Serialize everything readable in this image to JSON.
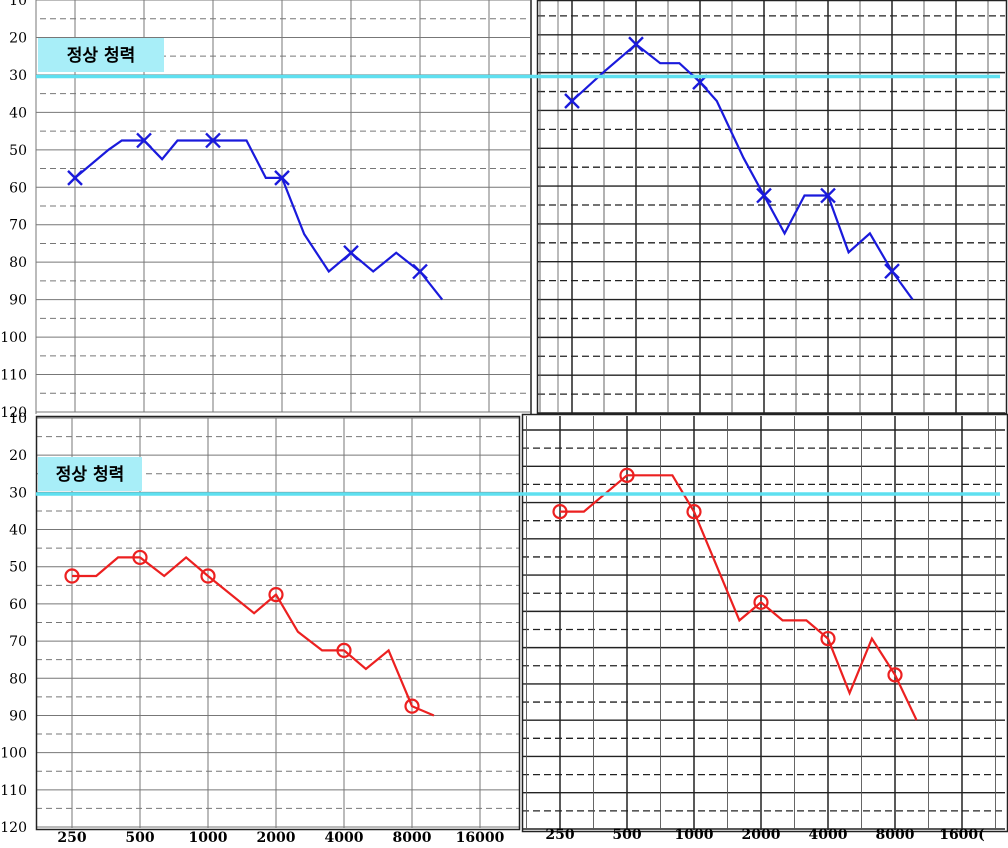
{
  "normal_hearing_label": "정상 청력",
  "normal_hearing_level": 30,
  "colors": {
    "normal_line": "#5ee0f0",
    "normal_label_bg": "#a8eef8",
    "blue_series": "#1a1adc",
    "red_series": "#ec2020"
  },
  "chart_data": [
    {
      "type": "line",
      "panel": "top-left",
      "x_ticks": [
        "250",
        "500",
        "1000",
        "2000",
        "4000",
        "8000",
        "16000"
      ],
      "y_ticks": [
        "10",
        "20",
        "30",
        "40",
        "50",
        "60",
        "70",
        "80",
        "90",
        "100",
        "110",
        "120"
      ],
      "ylim": [
        10,
        120
      ],
      "y_inverted": true,
      "grid": true,
      "series": [
        {
          "color": "blue",
          "marker": "x",
          "points": [
            [
              250,
              57.5
            ],
            [
              350,
              50
            ],
            [
              400,
              47.5
            ],
            [
              500,
              47.5
            ],
            [
              600,
              52.5
            ],
            [
              700,
              47.5
            ],
            [
              850,
              47.5
            ],
            [
              1000,
              47.5
            ],
            [
              1150,
              47.5
            ],
            [
              1400,
              47.5
            ],
            [
              1700,
              57.5
            ],
            [
              2000,
              57.5
            ],
            [
              2500,
              72.5
            ],
            [
              3200,
              82.5
            ],
            [
              4000,
              77.5
            ],
            [
              5000,
              82.5
            ],
            [
              6300,
              77.5
            ],
            [
              8000,
              82.5
            ],
            [
              10000,
              90
            ]
          ],
          "markers": [
            [
              250,
              57.5
            ],
            [
              500,
              47.5
            ],
            [
              1000,
              47.5
            ],
            [
              2000,
              57.5
            ],
            [
              4000,
              77.5
            ],
            [
              8000,
              82.5
            ]
          ]
        }
      ]
    },
    {
      "type": "line",
      "panel": "top-right",
      "x_ticks": [],
      "y_ticks": [],
      "ylim": [
        10,
        120
      ],
      "y_inverted": true,
      "grid": true,
      "series": [
        {
          "color": "blue",
          "marker": "x",
          "points": [
            [
              250,
              37.5
            ],
            [
              350,
              30
            ],
            [
              500,
              22.5
            ],
            [
              650,
              27.5
            ],
            [
              800,
              27.5
            ],
            [
              1000,
              32.5
            ],
            [
              1200,
              37.5
            ],
            [
              1600,
              52.5
            ],
            [
              2000,
              62.5
            ],
            [
              2500,
              72.5
            ],
            [
              3100,
              62.5
            ],
            [
              4000,
              62.5
            ],
            [
              5000,
              77.5
            ],
            [
              6300,
              72.5
            ],
            [
              8000,
              82.5
            ],
            [
              10000,
              90
            ]
          ],
          "markers": [
            [
              250,
              37.5
            ],
            [
              500,
              22.5
            ],
            [
              1000,
              32.5
            ],
            [
              2000,
              62.5
            ],
            [
              4000,
              62.5
            ],
            [
              8000,
              82.5
            ]
          ]
        }
      ]
    },
    {
      "type": "line",
      "panel": "bottom-left",
      "x_ticks": [
        "250",
        "500",
        "1000",
        "2000",
        "4000",
        "8000",
        "16000"
      ],
      "y_ticks": [
        "10",
        "20",
        "30",
        "40",
        "50",
        "60",
        "70",
        "80",
        "90",
        "100",
        "110",
        "120"
      ],
      "ylim": [
        10,
        120
      ],
      "y_inverted": true,
      "grid": true,
      "series": [
        {
          "color": "red",
          "marker": "o",
          "points": [
            [
              250,
              52.5
            ],
            [
              320,
              52.5
            ],
            [
              400,
              47.5
            ],
            [
              500,
              47.5
            ],
            [
              640,
              52.5
            ],
            [
              800,
              47.5
            ],
            [
              1000,
              52.5
            ],
            [
              1600,
              62.5
            ],
            [
              2000,
              57.5
            ],
            [
              2500,
              67.5
            ],
            [
              3200,
              72.5
            ],
            [
              4000,
              72.5
            ],
            [
              5000,
              77.5
            ],
            [
              6300,
              72.5
            ],
            [
              8000,
              87.5
            ],
            [
              10000,
              90
            ]
          ],
          "markers": [
            [
              250,
              52.5
            ],
            [
              500,
              47.5
            ],
            [
              1000,
              52.5
            ],
            [
              2000,
              57.5
            ],
            [
              4000,
              72.5
            ],
            [
              8000,
              87.5
            ]
          ]
        }
      ]
    },
    {
      "type": "line",
      "panel": "bottom-right",
      "x_ticks": [
        "250",
        "500",
        "1000",
        "2000",
        "4000",
        "8000",
        "1600("
      ],
      "y_ticks": [],
      "ylim": [
        10,
        120
      ],
      "y_inverted": true,
      "grid": true,
      "series": [
        {
          "color": "red",
          "marker": "o",
          "points": [
            [
              250,
              32.5
            ],
            [
              320,
              32.5
            ],
            [
              500,
              22.5
            ],
            [
              640,
              22.5
            ],
            [
              800,
              22.5
            ],
            [
              1000,
              32.5
            ],
            [
              1600,
              62.5
            ],
            [
              2000,
              57.5
            ],
            [
              2500,
              62.5
            ],
            [
              3200,
              62.5
            ],
            [
              4000,
              67.5
            ],
            [
              5000,
              82.5
            ],
            [
              6300,
              67.5
            ],
            [
              8000,
              77.5
            ],
            [
              10000,
              90
            ]
          ],
          "markers": [
            [
              250,
              32.5
            ],
            [
              500,
              22.5
            ],
            [
              1000,
              32.5
            ],
            [
              2000,
              57.5
            ],
            [
              4000,
              67.5
            ],
            [
              8000,
              77.5
            ]
          ]
        }
      ]
    }
  ]
}
